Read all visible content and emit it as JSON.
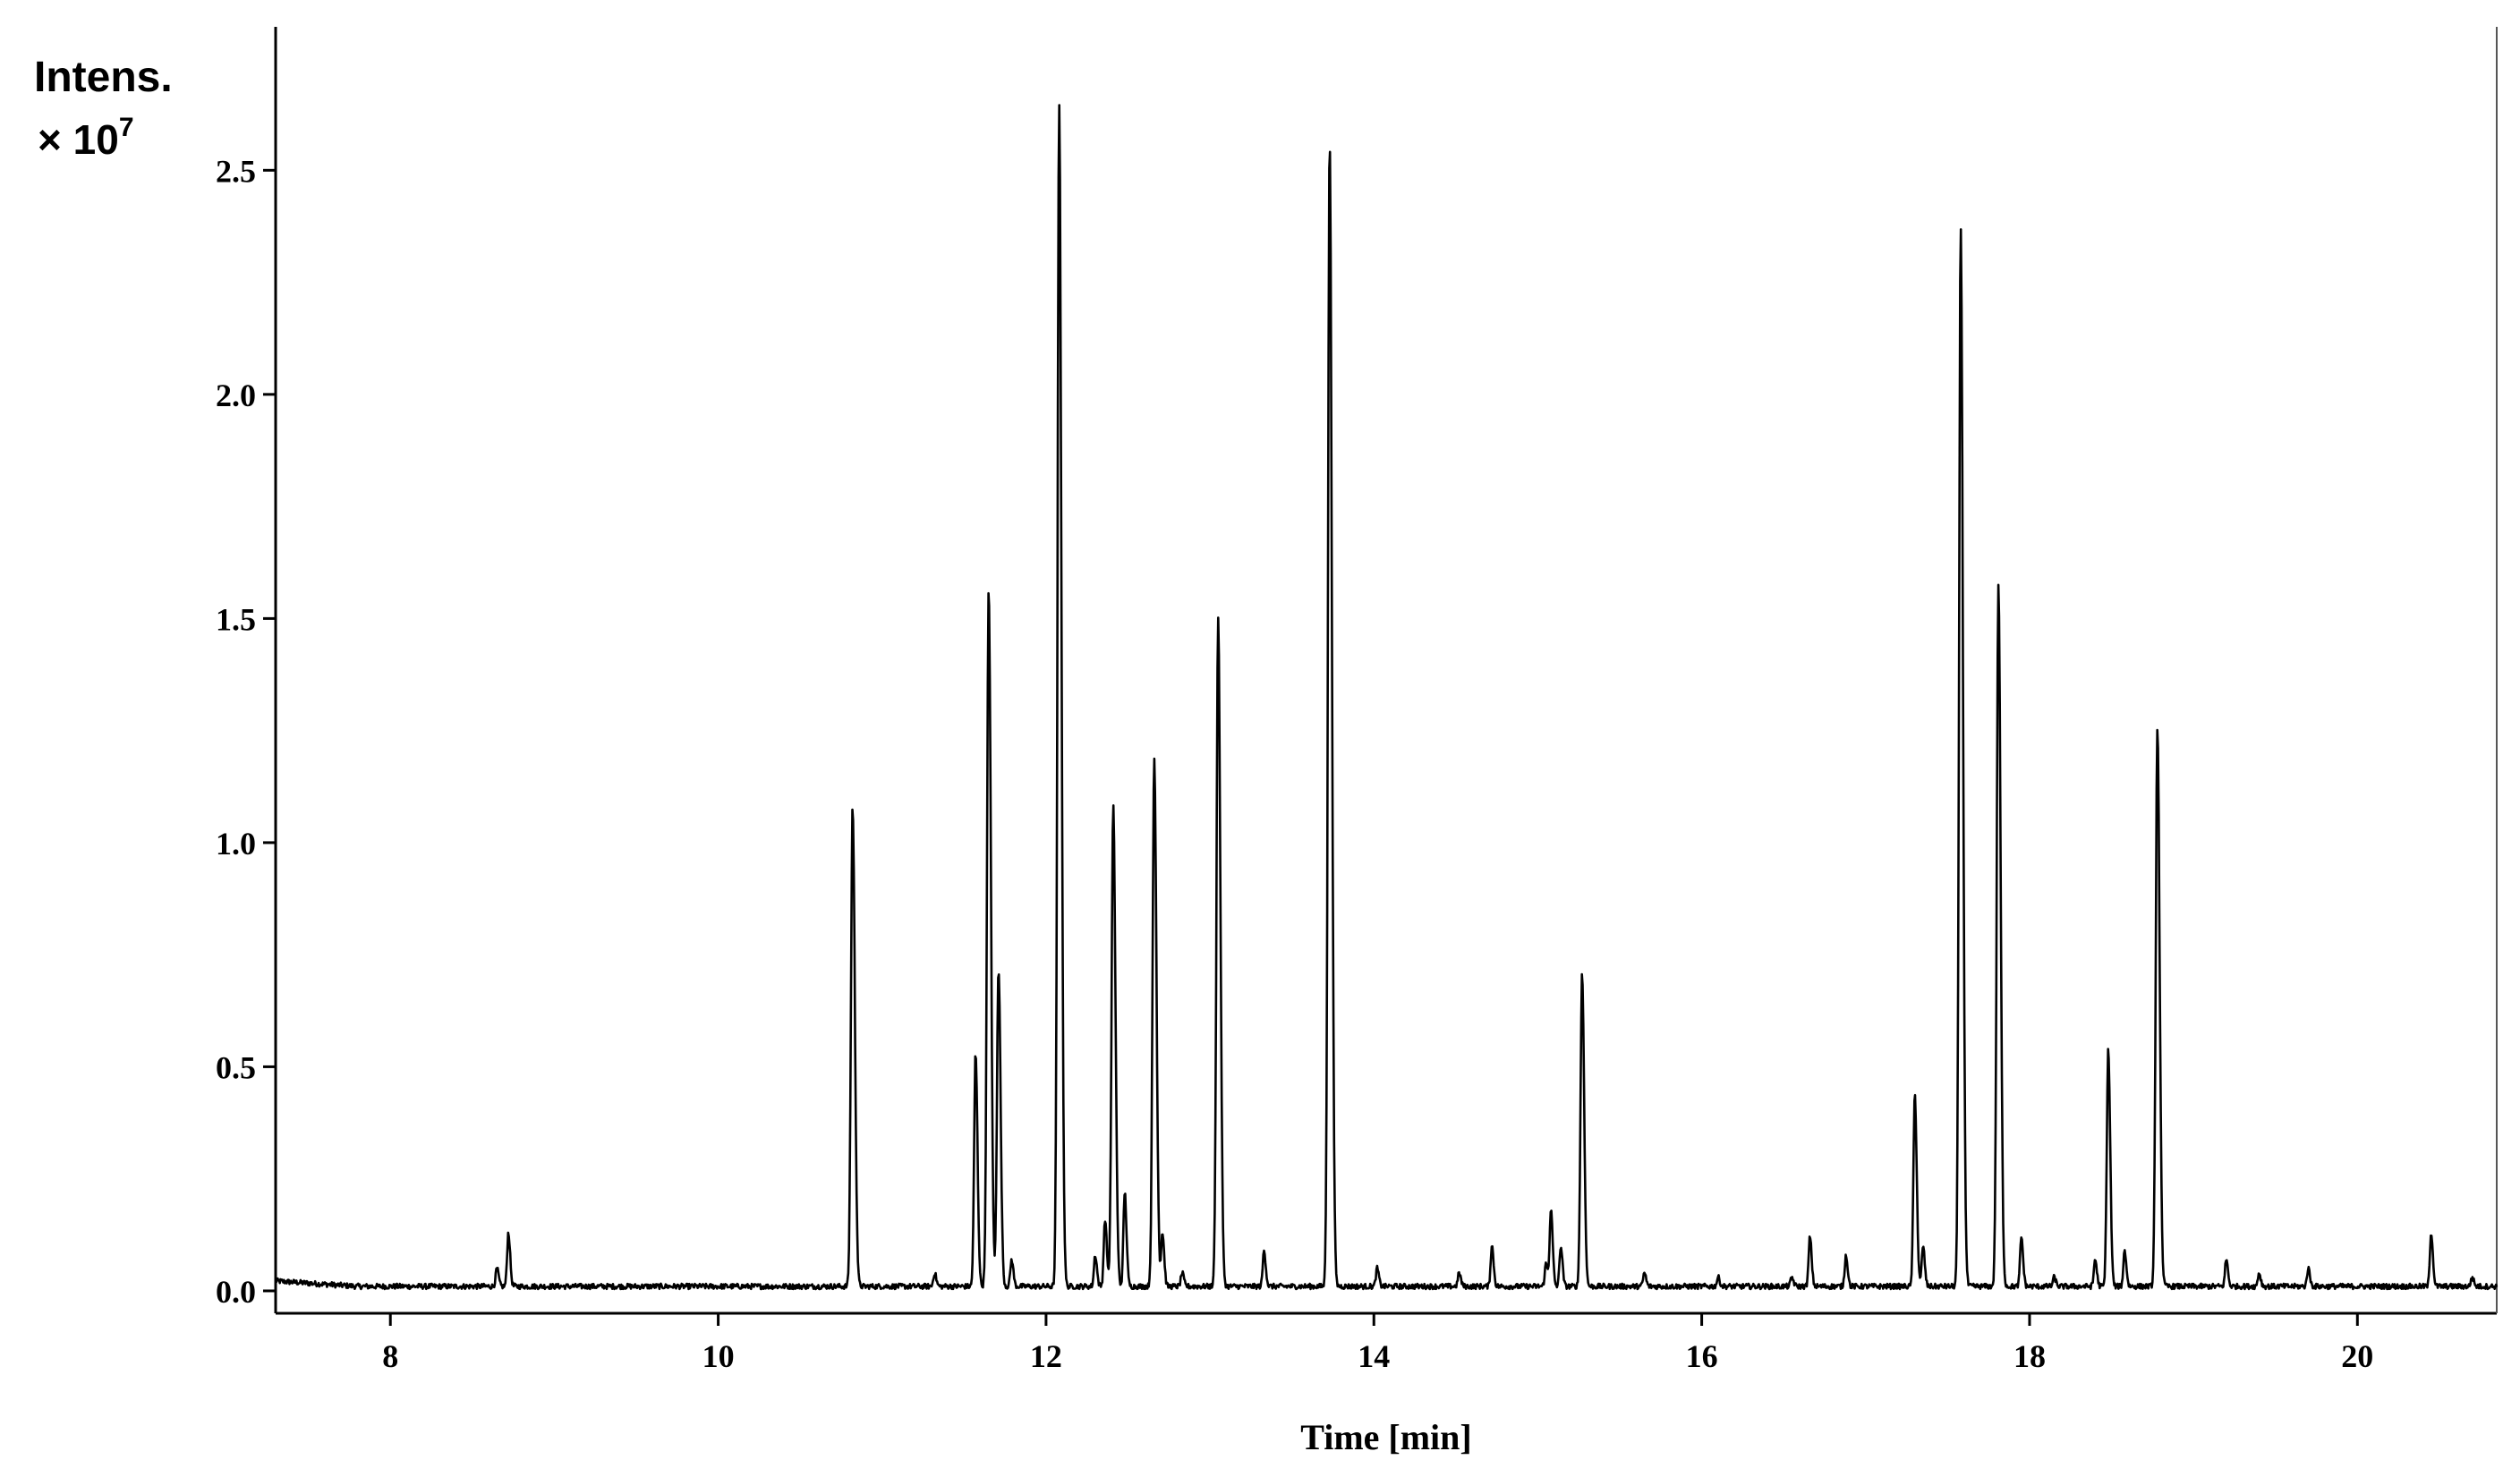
{
  "chart_data": {
    "type": "line",
    "title": "",
    "xlabel": "Time [min]",
    "ylabel": "Intens.",
    "ylabel_multiplier": "× 10",
    "ylabel_exponent": "7",
    "xlim": [
      7.3,
      20.85
    ],
    "ylim": [
      -0.05,
      2.82
    ],
    "x_ticks": [
      8,
      10,
      12,
      14,
      16,
      18,
      20
    ],
    "x_tick_labels": [
      "8",
      "10",
      "12",
      "14",
      "16",
      "18",
      "20"
    ],
    "y_ticks": [
      0.0,
      0.5,
      1.0,
      1.5,
      2.0,
      2.5
    ],
    "y_tick_labels": [
      "0.0",
      "0.5",
      "1.0",
      "1.5",
      "2.0",
      "2.5"
    ],
    "grid": false,
    "legend": "none",
    "baseline": 0.01,
    "series": [
      {
        "x": [
          8.65,
          8.72,
          10.82,
          11.32,
          11.57,
          11.65,
          11.71,
          11.79,
          12.08,
          12.3,
          12.36,
          12.41,
          12.48,
          12.66,
          12.71,
          12.83,
          13.05,
          13.33,
          13.73,
          14.02,
          14.52,
          14.72,
          15.05,
          15.08,
          15.14,
          15.27,
          15.65,
          16.1,
          16.55,
          16.66,
          16.88,
          17.3,
          17.35,
          17.58,
          17.81,
          17.95,
          18.15,
          18.4,
          18.48,
          18.58,
          18.78,
          19.2,
          19.4,
          19.7,
          20.45,
          20.7
        ],
        "y": [
          0.05,
          0.13,
          1.08,
          0.04,
          0.53,
          1.57,
          0.72,
          0.07,
          2.65,
          0.08,
          0.16,
          1.08,
          0.22,
          1.19,
          0.13,
          0.04,
          1.5,
          0.09,
          2.57,
          0.05,
          0.04,
          0.1,
          0.06,
          0.18,
          0.1,
          0.71,
          0.04,
          0.03,
          0.03,
          0.12,
          0.08,
          0.44,
          0.1,
          2.37,
          1.57,
          0.12,
          0.03,
          0.07,
          0.54,
          0.09,
          1.25,
          0.07,
          0.04,
          0.05,
          0.13,
          0.03
        ]
      }
    ]
  }
}
